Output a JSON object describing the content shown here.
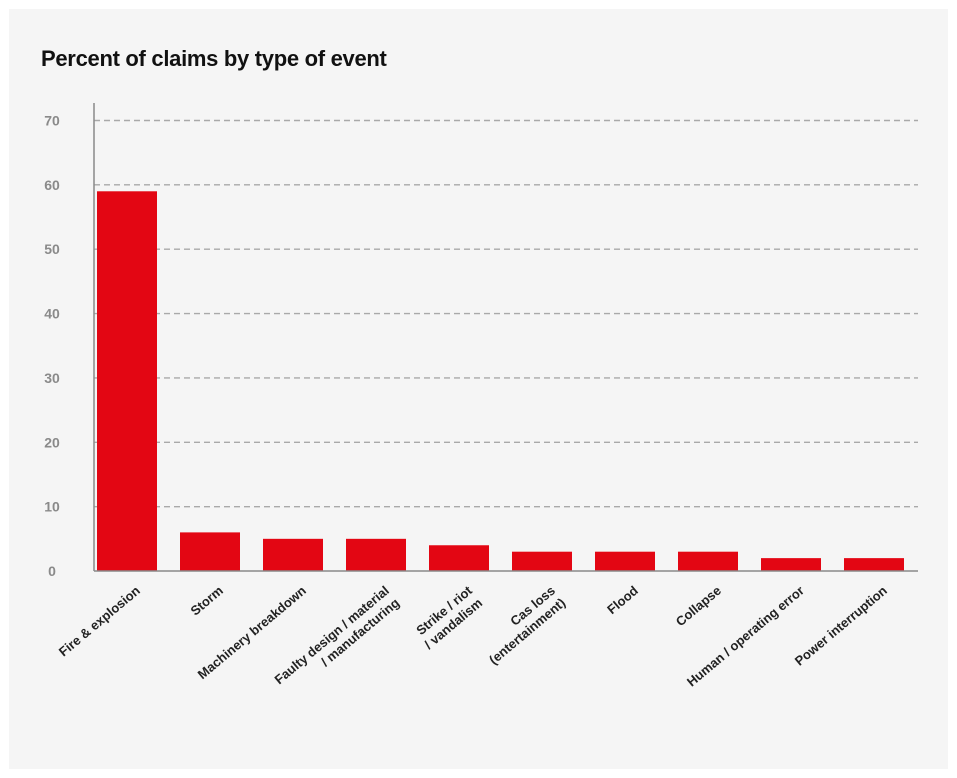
{
  "colors": {
    "background": "#f5f5f5",
    "bar": "#e30613",
    "grid": "#a9a9a9",
    "axis": "#8a8a8a",
    "text": "#111111"
  },
  "chart_data": {
    "type": "bar",
    "title": "Percent of claims by type of event",
    "xlabel": "",
    "ylabel": "",
    "ylim": [
      0,
      70
    ],
    "yticks": [
      0,
      10,
      20,
      30,
      40,
      50,
      60,
      70
    ],
    "grid": true,
    "categories": [
      "Fire & explosion",
      "Storm",
      "Machinery breakdown",
      "Faulty design / material / manufacturing",
      "Strike / riot / vandalism",
      "Cas loss (entertainment)",
      "Flood",
      "Collapse",
      "Human / operating error",
      "Power interruption"
    ],
    "category_lines": [
      [
        "Fire & explosion"
      ],
      [
        "Storm"
      ],
      [
        "Machinery breakdown"
      ],
      [
        "Faulty design / material",
        "/ manufacturing"
      ],
      [
        "Strike / riot",
        "/ vandalism"
      ],
      [
        "Cas loss",
        "(entertainment)"
      ],
      [
        "Flood"
      ],
      [
        "Collapse"
      ],
      [
        "Human / operating error"
      ],
      [
        "Power interruption"
      ]
    ],
    "values": [
      59,
      6,
      5,
      5,
      4,
      3,
      3,
      3,
      2,
      2
    ]
  }
}
